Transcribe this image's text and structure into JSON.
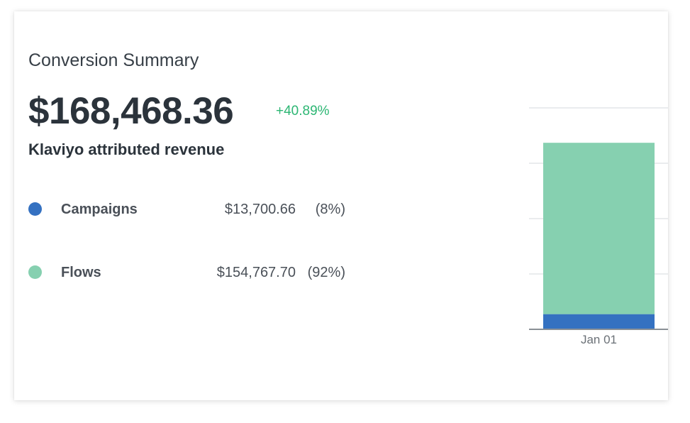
{
  "summary": {
    "title": "Conversion Summary",
    "total": "$168,468.36",
    "change": "+40.89%",
    "subtitle": "Klaviyo attributed revenue"
  },
  "breakdown": [
    {
      "label": "Campaigns",
      "value": "$13,700.66",
      "percent": "(8%)",
      "color": "#3471c1"
    },
    {
      "label": "Flows",
      "value": "$154,767.70",
      "percent": "(92%)",
      "color": "#86d0b0"
    }
  ],
  "colors": {
    "positive_change": "#2cb673",
    "campaigns": "#3471c1",
    "flows": "#86d0b0"
  },
  "chart_data": {
    "type": "bar",
    "stacked": true,
    "categories": [
      "Jan 01"
    ],
    "series": [
      {
        "name": "Campaigns",
        "values": [
          13700.66
        ],
        "color": "#3471c1"
      },
      {
        "name": "Flows",
        "values": [
          154767.7
        ],
        "color": "#86d0b0"
      }
    ],
    "ylim": [
      0,
      200000
    ],
    "grid": true,
    "title": "",
    "xlabel": "",
    "ylabel": ""
  }
}
